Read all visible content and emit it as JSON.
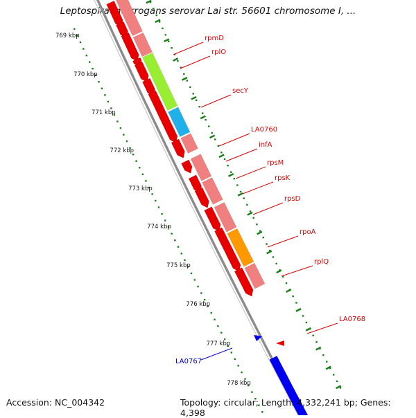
{
  "title": "Leptospira interrogans serovar Lai str. 56601 chromosome I, ...",
  "footer": {
    "accession": "Accession: NC_004342",
    "stats": "Topology: circular; Length: 4,332,241 bp; Genes: 4,398"
  },
  "colors": {
    "backbone": "#8c8c8c",
    "ruler_dots": "#1a7f1a",
    "forward_gene": "#e60000",
    "forward_product": "#f08080",
    "secY_product": "#99ee33",
    "infA_product": "#22b0e8",
    "rpoA_product": "#ff9900",
    "reverse_gene": "#0000ee",
    "label_forward": "#dd0000",
    "label_reverse": "#0000cc"
  },
  "ruler": {
    "unit": "kbp",
    "ticks": [
      "769 kbp",
      "770 kbp",
      "771 kbp",
      "772 kbp",
      "773 kbp",
      "774 kbp",
      "775 kbp",
      "776 kbp",
      "777 kbp",
      "778 kbp"
    ]
  },
  "gene_labels": [
    {
      "name": "rpmD",
      "strand": "forward"
    },
    {
      "name": "rplO",
      "strand": "forward"
    },
    {
      "name": "secY",
      "strand": "forward"
    },
    {
      "name": "LA0760",
      "strand": "forward"
    },
    {
      "name": "infA",
      "strand": "forward"
    },
    {
      "name": "rpsM",
      "strand": "forward"
    },
    {
      "name": "rpsK",
      "strand": "forward"
    },
    {
      "name": "rpsD",
      "strand": "forward"
    },
    {
      "name": "rpoA",
      "strand": "forward"
    },
    {
      "name": "rplQ",
      "strand": "forward"
    },
    {
      "name": "LA0768",
      "strand": "forward"
    },
    {
      "name": "LA0767",
      "strand": "reverse"
    }
  ]
}
